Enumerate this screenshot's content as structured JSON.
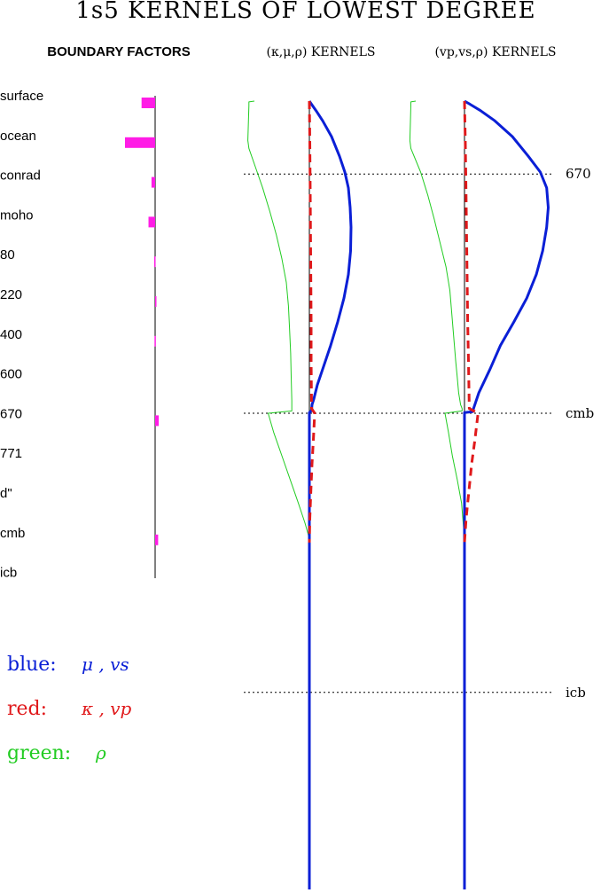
{
  "title": "1s5 KERNELS OF LOWEST DEGREE",
  "panels": {
    "boundary": "BOUNDARY FACTORS",
    "kmr_kernels": "(κ,μ,ρ) KERNELS",
    "vvr_kernels": "(vp,vs,ρ) KERNELS"
  },
  "depth_markers": [
    "670",
    "cmb",
    "icb"
  ],
  "legend": {
    "blue_label": "blue:",
    "blue_vars": "μ , vs",
    "red_label": "red:",
    "red_vars": "κ , vp",
    "green_label": "green:",
    "green_vars": "ρ"
  },
  "colors": {
    "blue": "#0a1fd6",
    "red": "#e0191b",
    "green": "#22cc22",
    "magenta": "#ff1ce6",
    "axis": "#000000",
    "teal": "#1a8a8a"
  },
  "chart_data": [
    {
      "type": "bar",
      "title": "BOUNDARY FACTORS",
      "orientation": "horizontal",
      "categories": [
        "surface",
        "ocean",
        "conrad",
        "moho",
        "80",
        "220",
        "400",
        "600",
        "670",
        "771",
        "d\"",
        "cmb",
        "icb"
      ],
      "values": [
        -0.45,
        -1.0,
        -0.12,
        -0.22,
        -0.03,
        0.03,
        -0.02,
        0.0,
        0.12,
        0.0,
        0.0,
        0.1,
        0.0
      ],
      "xlim": [
        -1.1,
        1.1
      ]
    },
    {
      "type": "line",
      "title": "(κ,μ,ρ) KERNELS",
      "y_axis": "depth",
      "depth_markers": [
        "670",
        "cmb",
        "icb"
      ],
      "series": [
        {
          "name": "blue",
          "color": "#0a1fd6",
          "x": [
            0,
            0.05,
            0.15,
            0.3,
            0.5,
            0.68,
            0.8,
            0.88,
            0.92,
            0.94,
            0.93,
            0.88,
            0.78,
            0.64,
            0.48,
            0.3,
            0.18,
            0.1,
            0.06,
            0.05,
            0.04,
            0.02,
            0,
            0,
            0,
            0,
            0
          ],
          "y": [
            0,
            0.004,
            0.012,
            0.025,
            0.045,
            0.07,
            0.09,
            0.11,
            0.135,
            0.16,
            0.19,
            0.22,
            0.25,
            0.28,
            0.31,
            0.34,
            0.36,
            0.378,
            0.385,
            0.392,
            0.393,
            0.394,
            0.395,
            0.42,
            0.5,
            0.6,
            1.0
          ]
        },
        {
          "name": "red",
          "color": "#e0191b",
          "x": [
            0,
            0.01,
            0.02,
            0.03,
            0.04,
            0.04,
            0.05,
            0.12,
            0.09,
            0.06,
            0.03,
            0.01,
            0
          ],
          "y": [
            0,
            0.05,
            0.12,
            0.2,
            0.28,
            0.33,
            0.39,
            0.396,
            0.43,
            0.46,
            0.5,
            0.53,
            0.56
          ]
        },
        {
          "name": "green",
          "color": "#22cc22",
          "x": [
            -1.0,
            -1.1,
            -1.1,
            -1.12,
            -1.1,
            -0.95,
            -0.85,
            -0.72,
            -0.6,
            -0.5,
            -0.42,
            -0.38,
            -0.36,
            -0.34,
            -0.33,
            -0.32,
            -0.32,
            -0.75,
            -0.65,
            -0.5,
            -0.35,
            -0.2,
            -0.08,
            -0.02,
            0
          ],
          "y": [
            0,
            0.001,
            0.006,
            0.05,
            0.06,
            0.09,
            0.11,
            0.14,
            0.17,
            0.2,
            0.23,
            0.26,
            0.29,
            0.32,
            0.35,
            0.38,
            0.393,
            0.396,
            0.42,
            0.45,
            0.48,
            0.51,
            0.535,
            0.55,
            0.56
          ]
        }
      ]
    },
    {
      "type": "line",
      "title": "(vp,vs,ρ) KERNELS",
      "y_axis": "depth",
      "depth_markers": [
        "670",
        "cmb",
        "icb"
      ],
      "series": [
        {
          "name": "blue",
          "color": "#0a1fd6",
          "x": [
            0,
            0.07,
            0.2,
            0.38,
            0.6,
            0.8,
            0.95,
            1.03,
            1.05,
            1.03,
            0.98,
            0.9,
            0.78,
            0.62,
            0.45,
            0.32,
            0.18,
            0.1,
            0,
            0,
            0,
            0,
            0,
            0
          ],
          "y": [
            0,
            0.004,
            0.012,
            0.025,
            0.045,
            0.07,
            0.09,
            0.11,
            0.135,
            0.16,
            0.19,
            0.22,
            0.25,
            0.28,
            0.31,
            0.34,
            0.37,
            0.394,
            0.395,
            0.42,
            0.5,
            0.56,
            0.6,
            1.0
          ]
        },
        {
          "name": "red",
          "color": "#e0191b",
          "x": [
            0,
            0.01,
            0.02,
            0.03,
            0.04,
            0.05,
            0.06,
            0.17,
            0.13,
            0.09,
            0.05,
            0.02,
            0
          ],
          "y": [
            0,
            0.05,
            0.12,
            0.2,
            0.28,
            0.33,
            0.39,
            0.396,
            0.43,
            0.46,
            0.5,
            0.53,
            0.56
          ]
        },
        {
          "name": "green",
          "color": "#22cc22",
          "x": [
            -1.0,
            -1.1,
            -1.1,
            -1.12,
            -1.1,
            -0.9,
            -0.75,
            -0.62,
            -0.5,
            -0.38,
            -0.3,
            -0.26,
            -0.22,
            -0.18,
            -0.15,
            -0.12,
            -0.08,
            -0.05,
            -0.05,
            -0.4,
            -0.33,
            -0.25,
            -0.15,
            -0.06,
            -0.02,
            0
          ],
          "y": [
            0,
            0.001,
            0.006,
            0.05,
            0.06,
            0.09,
            0.12,
            0.15,
            0.18,
            0.21,
            0.24,
            0.27,
            0.3,
            0.33,
            0.35,
            0.37,
            0.385,
            0.39,
            0.393,
            0.396,
            0.42,
            0.45,
            0.48,
            0.51,
            0.54,
            0.56
          ]
        }
      ]
    }
  ]
}
